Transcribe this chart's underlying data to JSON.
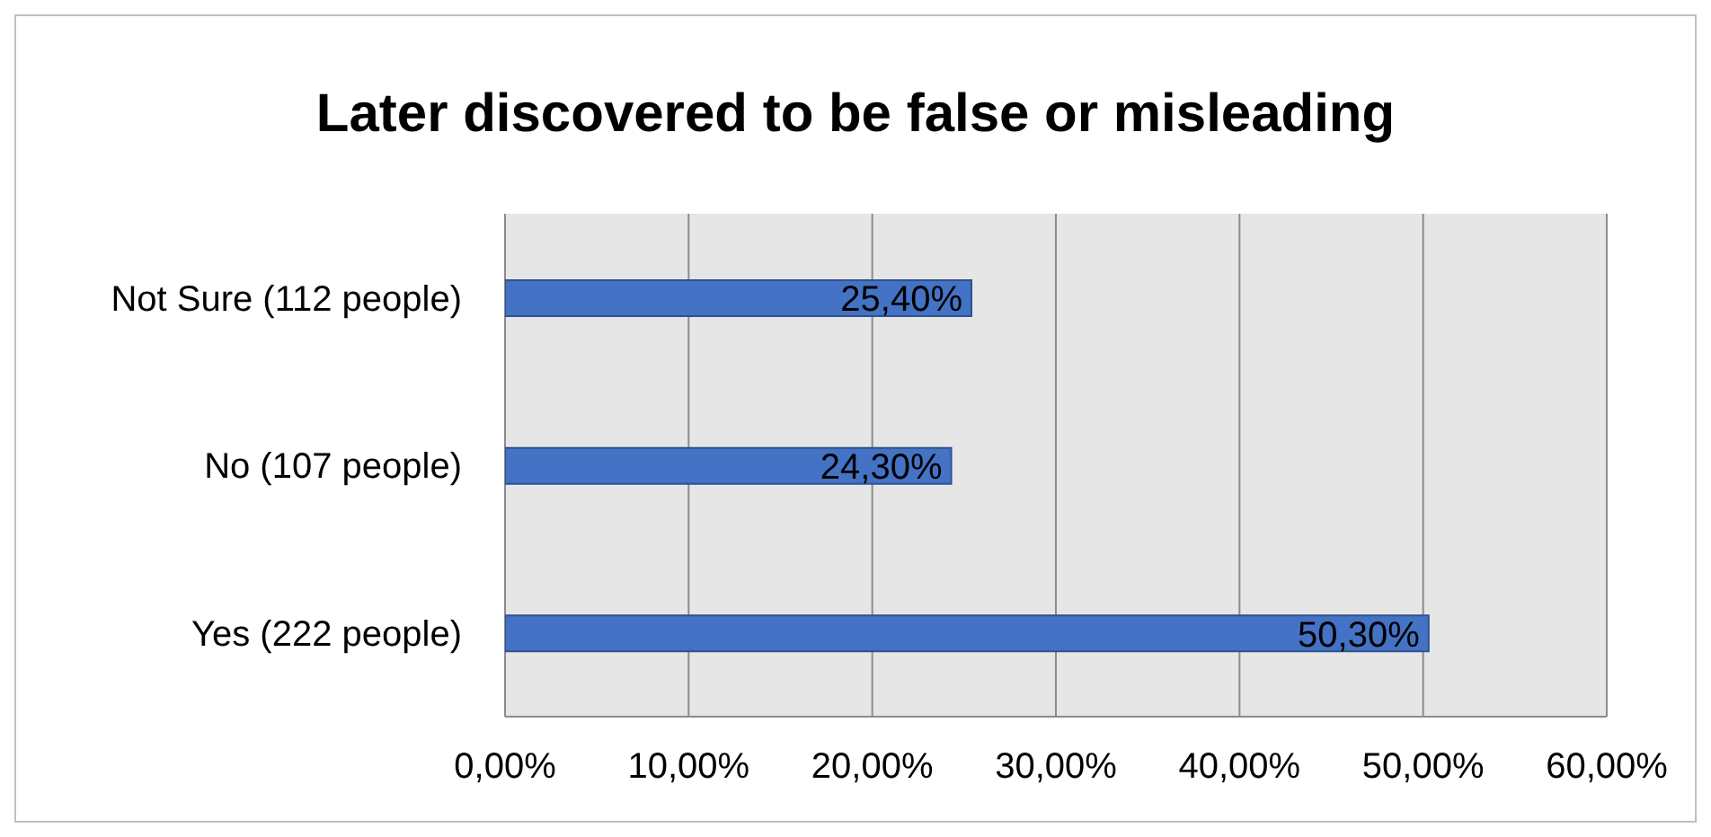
{
  "chart_data": {
    "type": "bar",
    "orientation": "horizontal",
    "title": "Later discovered to be false or misleading",
    "categories": [
      "Not Sure (112 people)",
      "No (107 people)",
      "Yes (222 people)"
    ],
    "values": [
      25.4,
      24.3,
      50.3
    ],
    "color": "#4472c4",
    "value_labels": [
      "25,40%",
      "24,30%",
      "50,30%"
    ],
    "xlim": [
      0,
      60
    ],
    "xticks": [
      {
        "value": 0,
        "label": "0,00%"
      },
      {
        "value": 10,
        "label": "10,00%"
      },
      {
        "value": 20,
        "label": "20,00%"
      },
      {
        "value": 30,
        "label": "30,00%"
      },
      {
        "value": 40,
        "label": "40,00%"
      },
      {
        "value": 50,
        "label": "50,00%"
      },
      {
        "value": 60,
        "label": "60,00%"
      }
    ],
    "grid": "x",
    "legend": false
  }
}
